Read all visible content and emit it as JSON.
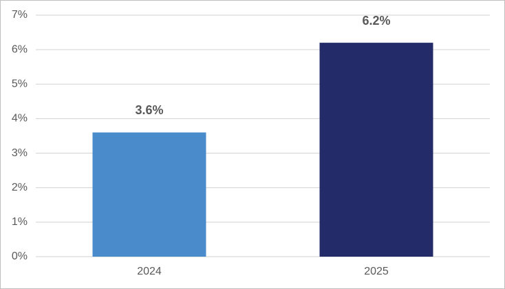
{
  "chart_data": {
    "type": "bar",
    "categories": [
      "2024",
      "2025"
    ],
    "values": [
      3.6,
      6.2
    ],
    "value_labels": [
      "3.6%",
      "6.2%"
    ],
    "colors": [
      "#4a8bcc",
      "#232c68"
    ],
    "ylim": [
      0,
      7
    ],
    "yticks": [
      {
        "value": 0,
        "label": "0%"
      },
      {
        "value": 1,
        "label": "1%"
      },
      {
        "value": 2,
        "label": "2%"
      },
      {
        "value": 3,
        "label": "3%"
      },
      {
        "value": 4,
        "label": "4%"
      },
      {
        "value": 5,
        "label": "5%"
      },
      {
        "value": 6,
        "label": "6%"
      },
      {
        "value": 7,
        "label": "7%"
      }
    ],
    "grid": true
  }
}
